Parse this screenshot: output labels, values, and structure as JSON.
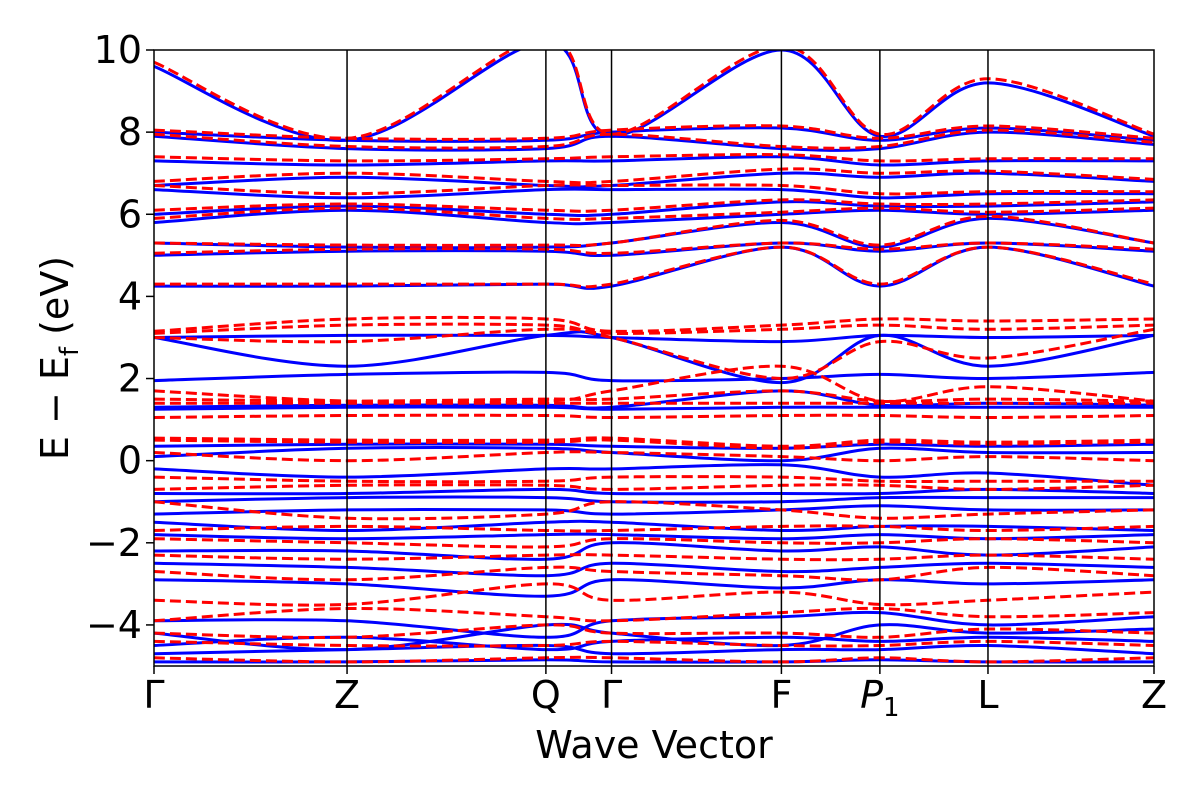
{
  "chart_data": {
    "type": "line",
    "xlabel": "Wave Vector",
    "ylabel": "E − E",
    "ylabel_sub": "f",
    "ylabel_unit": " (eV)",
    "ylim": [
      -5,
      10
    ],
    "yticks": [
      -4,
      -2,
      0,
      2,
      4,
      6,
      8,
      10
    ],
    "ytick_labels": [
      "−4",
      "−2",
      "0",
      "2",
      "4",
      "6",
      "8",
      "10"
    ],
    "kpath": [
      {
        "label": "Γ",
        "x": 0.0
      },
      {
        "label": "Z",
        "x": 1.0
      },
      {
        "label": "Q",
        "x": 2.03
      },
      {
        "label": "Γ",
        "x": 2.37
      },
      {
        "label": "F",
        "x": 3.25
      },
      {
        "label": "P",
        "label_sub": "1",
        "italic": true,
        "x": 3.76
      },
      {
        "label": "L",
        "x": 4.32
      },
      {
        "label": "Z",
        "x": 5.18
      }
    ],
    "xlim": [
      0,
      5.18
    ],
    "grid": false,
    "series": [
      {
        "style": "solid",
        "color": "#0000ff",
        "bands": [
          [
            -4.9,
            -4.9,
            -4.85,
            -4.9,
            -4.9,
            -4.85,
            -4.9,
            -4.9
          ],
          [
            -4.7,
            -4.6,
            -4.5,
            -4.7,
            -4.6,
            -4.6,
            -4.5,
            -4.7
          ],
          [
            -4.5,
            -4.3,
            -4.6,
            -4.4,
            -4.3,
            -4.4,
            -4.3,
            -4.4
          ],
          [
            -4.2,
            -4.6,
            -4.0,
            -4.2,
            -4.5,
            -4.0,
            -4.2,
            -4.1
          ],
          [
            -3.9,
            -3.9,
            -4.3,
            -3.9,
            -3.8,
            -3.7,
            -4.0,
            -3.8
          ],
          [
            -2.9,
            -3.0,
            -3.3,
            -2.9,
            -3.1,
            -2.9,
            -3.0,
            -2.9
          ],
          [
            -2.5,
            -2.6,
            -2.8,
            -2.5,
            -2.7,
            -2.6,
            -2.5,
            -2.6
          ],
          [
            -2.2,
            -2.2,
            -2.4,
            -2.0,
            -2.2,
            -2.1,
            -2.3,
            -2.1
          ],
          [
            -1.8,
            -1.9,
            -1.8,
            -1.8,
            -1.9,
            -1.8,
            -1.9,
            -1.8
          ],
          [
            -1.5,
            -1.7,
            -1.5,
            -1.5,
            -1.7,
            -1.6,
            -1.6,
            -1.7
          ],
          [
            -1.3,
            -1.2,
            -1.2,
            -1.3,
            -1.2,
            -1.1,
            -1.2,
            -1.2
          ],
          [
            -1.0,
            -0.9,
            -0.9,
            -1.0,
            -1.0,
            -0.9,
            -0.9,
            -0.9
          ],
          [
            -0.8,
            -0.8,
            -0.7,
            -0.8,
            -0.8,
            -0.8,
            -0.7,
            -0.8
          ],
          [
            -0.2,
            -0.4,
            -0.2,
            -0.2,
            -0.1,
            -0.4,
            -0.3,
            -0.6
          ],
          [
            0.1,
            0.3,
            0.3,
            0.2,
            0.0,
            0.3,
            0.2,
            0.2
          ],
          [
            0.35,
            0.4,
            0.4,
            0.35,
            0.3,
            0.4,
            0.35,
            0.4
          ],
          [
            1.25,
            1.3,
            1.3,
            1.25,
            1.3,
            1.3,
            1.3,
            1.3
          ],
          [
            1.3,
            1.35,
            1.35,
            1.3,
            1.7,
            1.35,
            1.4,
            1.35
          ],
          [
            1.95,
            2.1,
            2.15,
            1.95,
            2.0,
            2.1,
            2.0,
            2.15
          ],
          [
            3.0,
            2.3,
            3.05,
            3.0,
            1.9,
            3.05,
            2.3,
            3.05
          ],
          [
            3.0,
            3.05,
            3.05,
            3.0,
            2.9,
            3.05,
            3.0,
            3.05
          ],
          [
            4.25,
            4.25,
            4.3,
            4.25,
            5.2,
            4.25,
            5.2,
            4.25
          ],
          [
            5.0,
            5.1,
            5.1,
            5.0,
            5.3,
            5.1,
            5.3,
            5.1
          ],
          [
            5.3,
            5.2,
            5.2,
            5.3,
            5.8,
            5.2,
            5.9,
            5.3
          ],
          [
            5.8,
            6.1,
            5.8,
            5.8,
            6.0,
            6.1,
            6.0,
            6.1
          ],
          [
            6.0,
            6.2,
            6.0,
            6.0,
            6.3,
            6.2,
            6.2,
            6.3
          ],
          [
            6.6,
            6.4,
            6.6,
            6.6,
            6.6,
            6.4,
            6.5,
            6.5
          ],
          [
            6.7,
            6.9,
            6.7,
            6.7,
            7.0,
            6.9,
            7.0,
            6.8
          ],
          [
            7.3,
            7.2,
            7.3,
            7.3,
            7.4,
            7.2,
            7.3,
            7.3
          ],
          [
            7.9,
            7.6,
            7.6,
            7.9,
            7.6,
            7.6,
            8.0,
            7.7
          ],
          [
            8.0,
            7.8,
            7.8,
            8.0,
            8.1,
            7.8,
            8.1,
            7.8
          ],
          [
            9.6,
            7.8,
            10.2,
            7.9,
            10.0,
            7.9,
            9.2,
            7.9
          ]
        ]
      },
      {
        "style": "dashed",
        "color": "#ff0000",
        "bands": [
          [
            -4.8,
            -4.9,
            -4.8,
            -4.8,
            -4.9,
            -4.8,
            -4.9,
            -4.8
          ],
          [
            -4.4,
            -4.5,
            -4.5,
            -4.4,
            -4.5,
            -4.5,
            -4.4,
            -4.5
          ],
          [
            -4.2,
            -4.3,
            -4.0,
            -4.2,
            -4.2,
            -4.3,
            -4.1,
            -4.2
          ],
          [
            -3.9,
            -3.6,
            -3.8,
            -3.9,
            -3.7,
            -3.6,
            -3.8,
            -3.7
          ],
          [
            -3.4,
            -3.5,
            -3.0,
            -3.4,
            -3.2,
            -3.5,
            -3.4,
            -3.2
          ],
          [
            -2.7,
            -2.9,
            -2.6,
            -2.7,
            -2.8,
            -2.9,
            -2.6,
            -2.8
          ],
          [
            -2.3,
            -2.4,
            -2.3,
            -2.3,
            -2.4,
            -2.4,
            -2.3,
            -2.4
          ],
          [
            -1.9,
            -2.0,
            -2.1,
            -1.9,
            -2.0,
            -2.0,
            -1.9,
            -2.0
          ],
          [
            -1.7,
            -1.6,
            -1.7,
            -1.7,
            -1.6,
            -1.6,
            -1.7,
            -1.6
          ],
          [
            -1.0,
            -1.4,
            -1.3,
            -1.0,
            -1.2,
            -1.4,
            -1.3,
            -1.2
          ],
          [
            -0.7,
            -0.6,
            -0.6,
            -0.7,
            -0.6,
            -0.6,
            -0.7,
            -0.6
          ],
          [
            -0.4,
            -0.5,
            -0.5,
            -0.4,
            -0.4,
            -0.5,
            -0.5,
            -0.5
          ],
          [
            0.2,
            0.0,
            0.2,
            0.2,
            0.1,
            0.0,
            0.1,
            0.0
          ],
          [
            0.5,
            0.45,
            0.45,
            0.5,
            0.3,
            0.45,
            0.4,
            0.45
          ],
          [
            0.55,
            0.5,
            0.5,
            0.55,
            0.35,
            0.5,
            0.45,
            0.5
          ],
          [
            1.05,
            1.1,
            1.1,
            1.05,
            1.1,
            1.1,
            1.05,
            1.1
          ],
          [
            1.4,
            1.4,
            1.4,
            1.4,
            1.4,
            1.4,
            1.4,
            1.4
          ],
          [
            1.5,
            1.45,
            1.5,
            1.5,
            1.7,
            1.45,
            1.5,
            1.45
          ],
          [
            1.7,
            1.45,
            1.45,
            1.7,
            2.3,
            1.45,
            1.8,
            1.45
          ],
          [
            3.0,
            2.9,
            3.2,
            3.0,
            2.0,
            2.9,
            2.5,
            3.2
          ],
          [
            3.1,
            3.3,
            3.3,
            3.1,
            3.2,
            3.3,
            3.2,
            3.3
          ],
          [
            3.15,
            3.45,
            3.45,
            3.15,
            3.3,
            3.45,
            3.4,
            3.45
          ],
          [
            4.3,
            4.3,
            4.3,
            4.3,
            5.2,
            4.3,
            5.2,
            4.3
          ],
          [
            5.05,
            5.15,
            5.15,
            5.05,
            5.3,
            5.15,
            5.3,
            5.15
          ],
          [
            5.3,
            5.25,
            5.25,
            5.3,
            5.85,
            5.25,
            5.95,
            5.3
          ],
          [
            5.9,
            6.15,
            5.9,
            5.9,
            6.05,
            6.15,
            6.05,
            6.15
          ],
          [
            6.1,
            6.25,
            6.1,
            6.1,
            6.35,
            6.25,
            6.25,
            6.35
          ],
          [
            6.7,
            6.5,
            6.7,
            6.7,
            6.7,
            6.5,
            6.55,
            6.55
          ],
          [
            6.8,
            7.0,
            6.8,
            6.8,
            7.1,
            7.0,
            7.05,
            6.85
          ],
          [
            7.4,
            7.3,
            7.35,
            7.4,
            7.45,
            7.3,
            7.35,
            7.35
          ],
          [
            7.95,
            7.65,
            7.65,
            7.95,
            7.65,
            7.65,
            8.05,
            7.75
          ],
          [
            8.05,
            7.85,
            7.85,
            8.05,
            8.15,
            7.85,
            8.15,
            7.85
          ],
          [
            9.7,
            7.85,
            10.3,
            7.95,
            10.1,
            7.95,
            9.3,
            7.95
          ]
        ]
      }
    ]
  }
}
